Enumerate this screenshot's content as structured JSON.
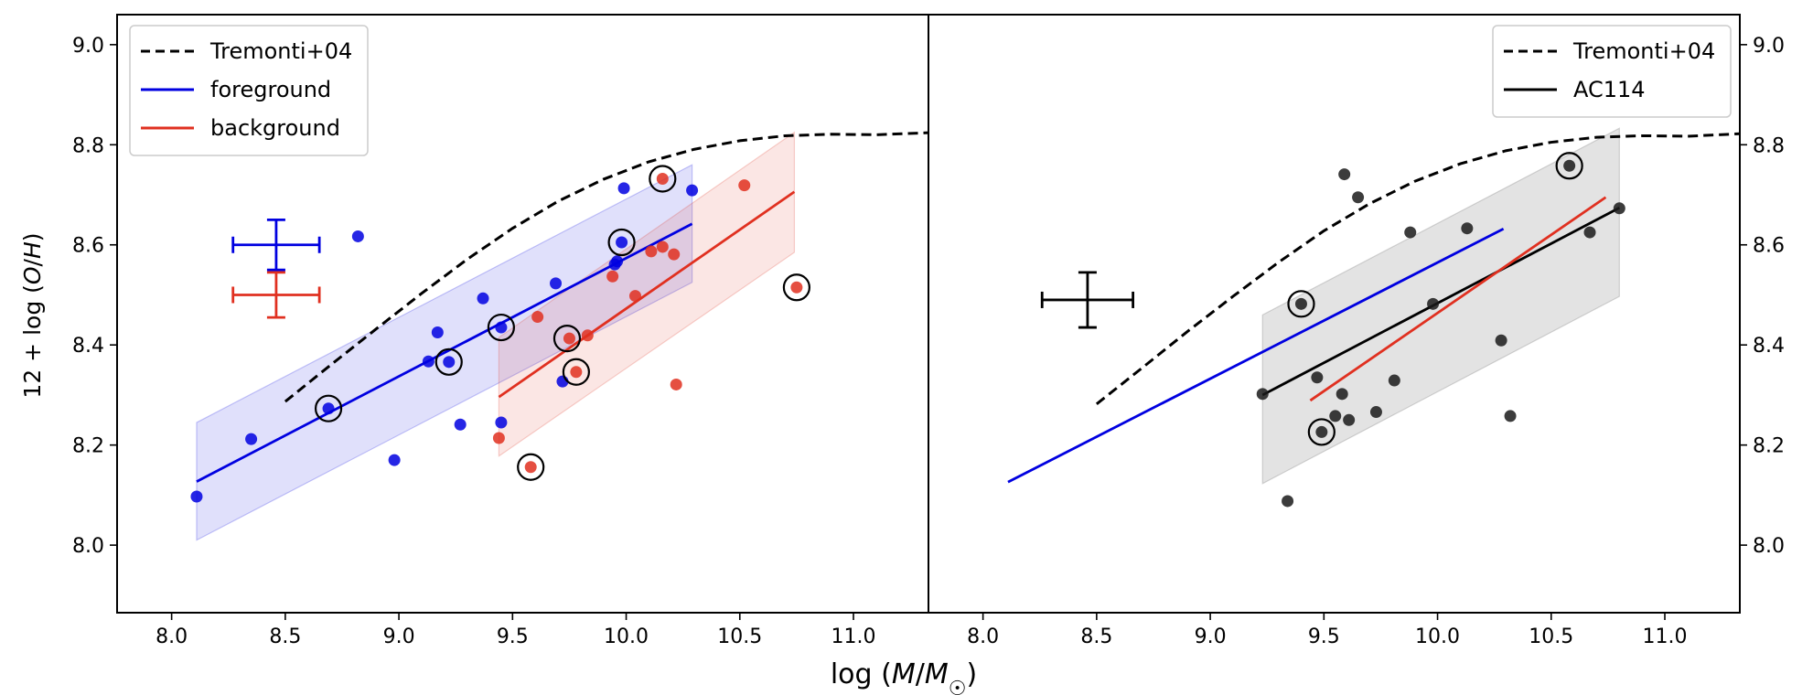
{
  "chart_data": [
    {
      "type": "scatter",
      "panel": "left",
      "xlabel": "log (M/M☉)",
      "ylabel": "12 + log (O/H)",
      "xlim": [
        7.76,
        11.33
      ],
      "ylim": [
        7.865,
        9.06
      ],
      "xticks": [
        8.0,
        8.5,
        9.0,
        9.5,
        10.0,
        10.5,
        11.0
      ],
      "xtick_labels": [
        "8.0",
        "8.5",
        "9.0",
        "9.5",
        "10.0",
        "10.5",
        "11.0"
      ],
      "yticks": [
        8.0,
        8.2,
        8.4,
        8.6,
        8.8,
        9.0
      ],
      "ytick_labels": [
        "8.0",
        "8.2",
        "8.4",
        "8.6",
        "8.8",
        "9.0"
      ],
      "legend": {
        "placement": "upper-left",
        "entries": [
          {
            "label": "Tremonti+04",
            "color": "#000000",
            "style": "dashed"
          },
          {
            "label": "foreground",
            "color": "#0000e0",
            "style": "solid"
          },
          {
            "label": "background",
            "color": "#e03020",
            "style": "solid"
          }
        ]
      },
      "curves": [
        {
          "name": "Tremonti+04",
          "color": "#000000",
          "style": "dashed",
          "x": [
            8.5,
            8.7,
            8.9,
            9.1,
            9.3,
            9.5,
            9.7,
            9.9,
            10.1,
            10.3,
            10.5,
            10.7,
            10.9,
            11.1,
            11.33
          ],
          "y": [
            8.287,
            8.36,
            8.432,
            8.503,
            8.571,
            8.633,
            8.687,
            8.731,
            8.766,
            8.791,
            8.808,
            8.818,
            8.821,
            8.82,
            8.824
          ]
        }
      ],
      "bands": [
        {
          "name": "foreground band",
          "color": "#0000e0",
          "opacity": 0.12,
          "x": [
            8.11,
            10.29
          ],
          "upper": [
            8.245,
            8.76
          ],
          "lower": [
            8.01,
            8.525
          ]
        },
        {
          "name": "background band",
          "color": "#e03020",
          "opacity": 0.12,
          "x": [
            9.44,
            10.74
          ],
          "upper": [
            8.415,
            8.825
          ],
          "lower": [
            8.178,
            8.585
          ]
        }
      ],
      "fit_lines": [
        {
          "name": "foreground",
          "color": "#0000e0",
          "x": [
            8.11,
            10.29
          ],
          "y": [
            8.127,
            8.642
          ]
        },
        {
          "name": "background",
          "color": "#e03020",
          "x": [
            9.44,
            10.74
          ],
          "y": [
            8.296,
            8.706
          ]
        }
      ],
      "series": [
        {
          "name": "foreground",
          "color": "#0000e0",
          "x": [
            8.11,
            8.35,
            8.69,
            8.82,
            8.98,
            9.13,
            9.17,
            9.22,
            9.27,
            9.37,
            9.45,
            9.45,
            9.69,
            9.72,
            9.95,
            9.96,
            9.98,
            9.99,
            10.29
          ],
          "y": [
            8.097,
            8.212,
            8.273,
            8.617,
            8.17,
            8.367,
            8.425,
            8.366,
            8.241,
            8.493,
            8.435,
            8.245,
            8.523,
            8.327,
            8.561,
            8.567,
            8.605,
            8.713,
            8.709
          ]
        },
        {
          "name": "background",
          "color": "#e03020",
          "x": [
            9.44,
            9.58,
            9.61,
            9.75,
            9.78,
            9.83,
            9.94,
            10.04,
            10.11,
            10.16,
            10.16,
            10.21,
            10.22,
            10.52,
            10.75
          ],
          "y": [
            8.214,
            8.156,
            8.456,
            8.413,
            8.346,
            8.419,
            8.537,
            8.498,
            8.587,
            8.732,
            8.596,
            8.581,
            8.321,
            8.719,
            8.515
          ]
        }
      ],
      "circled_points": {
        "x": [
          8.69,
          9.22,
          9.45,
          9.58,
          9.74,
          9.78,
          9.98,
          10.16,
          10.75
        ],
        "y": [
          8.273,
          8.366,
          8.435,
          8.156,
          8.413,
          8.346,
          8.605,
          8.732,
          8.515
        ]
      },
      "error_bars": [
        {
          "name": "foreground",
          "color": "#0000e0",
          "x": 8.46,
          "y": 8.6,
          "xerr": 0.19,
          "yerr": 0.05
        },
        {
          "name": "background",
          "color": "#e03020",
          "x": 8.46,
          "y": 8.5,
          "xerr": 0.19,
          "yerr": 0.045
        }
      ],
      "grid": false
    },
    {
      "type": "scatter",
      "panel": "right",
      "xlabel": "",
      "ylabel": "",
      "xlim": [
        7.76,
        11.33
      ],
      "ylim": [
        7.865,
        9.06
      ],
      "xticks": [
        8.0,
        8.5,
        9.0,
        9.5,
        10.0,
        10.5,
        11.0
      ],
      "xtick_labels": [
        "8.0",
        "8.5",
        "9.0",
        "9.5",
        "10.0",
        "10.5",
        "11.0"
      ],
      "yticks": [
        8.0,
        8.2,
        8.4,
        8.6,
        8.8,
        9.0
      ],
      "ytick_labels": [
        "8.0",
        "8.2",
        "8.4",
        "8.6",
        "8.8",
        "9.0"
      ],
      "ytick_side": "right",
      "legend": {
        "placement": "upper-right",
        "entries": [
          {
            "label": "Tremonti+04",
            "color": "#000000",
            "style": "dashed"
          },
          {
            "label": "AC114",
            "color": "#000000",
            "style": "solid"
          }
        ]
      },
      "curves": [
        {
          "name": "Tremonti+04",
          "color": "#000000",
          "style": "dashed",
          "x": [
            8.5,
            8.7,
            8.9,
            9.1,
            9.3,
            9.5,
            9.7,
            9.9,
            10.1,
            10.3,
            10.5,
            10.7,
            10.9,
            11.1,
            11.33
          ],
          "y": [
            8.282,
            8.354,
            8.427,
            8.497,
            8.565,
            8.628,
            8.682,
            8.727,
            8.762,
            8.788,
            8.805,
            8.815,
            8.818,
            8.817,
            8.822
          ]
        }
      ],
      "bands": [
        {
          "name": "AC114 band",
          "color": "#808080",
          "opacity": 0.22,
          "x": [
            9.23,
            10.8
          ],
          "upper": [
            8.46,
            8.833
          ],
          "lower": [
            8.123,
            8.497
          ]
        }
      ],
      "fit_lines": [
        {
          "name": "AC114",
          "color": "#000000",
          "x": [
            9.23,
            10.8
          ],
          "y": [
            8.3,
            8.674
          ]
        },
        {
          "name": "foreground",
          "color": "#0000e0",
          "x": [
            8.11,
            10.29
          ],
          "y": [
            8.126,
            8.632
          ]
        },
        {
          "name": "background",
          "color": "#e03020",
          "x": [
            9.44,
            10.74
          ],
          "y": [
            8.289,
            8.695
          ]
        }
      ],
      "series": [
        {
          "name": "AC114",
          "color": "#1a1a1a",
          "x": [
            9.23,
            9.34,
            9.4,
            9.47,
            9.49,
            9.55,
            9.58,
            9.59,
            9.61,
            9.65,
            9.73,
            9.81,
            9.88,
            9.98,
            10.13,
            10.28,
            10.32,
            10.58,
            10.67,
            10.8
          ],
          "y": [
            8.302,
            8.088,
            8.482,
            8.335,
            8.226,
            8.258,
            8.302,
            8.741,
            8.25,
            8.695,
            8.266,
            8.329,
            8.625,
            8.482,
            8.633,
            8.409,
            8.258,
            8.758,
            8.625,
            8.673
          ]
        }
      ],
      "circled_points": {
        "x": [
          9.4,
          9.49,
          10.58
        ],
        "y": [
          8.482,
          8.226,
          8.758
        ]
      },
      "error_bars": [
        {
          "name": "AC114",
          "color": "#000000",
          "x": 8.46,
          "y": 8.49,
          "xerr": 0.2,
          "yerr": 0.055
        }
      ],
      "grid": false
    }
  ]
}
